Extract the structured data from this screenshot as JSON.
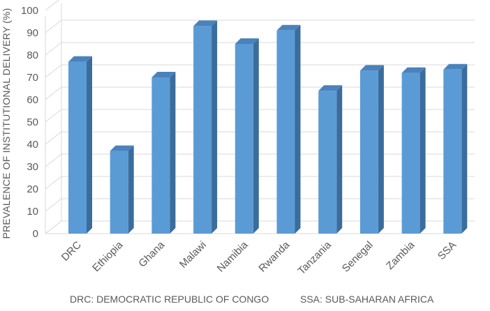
{
  "chart_data": {
    "type": "bar",
    "style": "3d-column",
    "title": "",
    "xlabel": "",
    "ylabel": "PREVALENCE OF INSTITUTIONAL DELIVERY (%)",
    "ylim": [
      0,
      100
    ],
    "yticks": [
      0,
      10,
      20,
      30,
      40,
      50,
      60,
      70,
      80,
      90,
      100
    ],
    "grid": true,
    "categories": [
      "DRC",
      "Ethiopia",
      "Ghana",
      "Malawi",
      "Namibia",
      "Rwanda",
      "Tanzania",
      "Senegal",
      "Zambia",
      "SSA"
    ],
    "values": [
      77,
      37,
      70,
      93,
      85,
      91,
      64,
      73,
      72,
      73.5
    ],
    "bar_color": "#5b9bd5",
    "bar_side_color": "#3a6d9c",
    "bar_top_color": "#4a82bc"
  },
  "footnotes": {
    "left": "DRC: DEMOCRATIC REPUBLIC OF CONGO",
    "right": "SSA: SUB-SAHARAN AFRICA"
  }
}
